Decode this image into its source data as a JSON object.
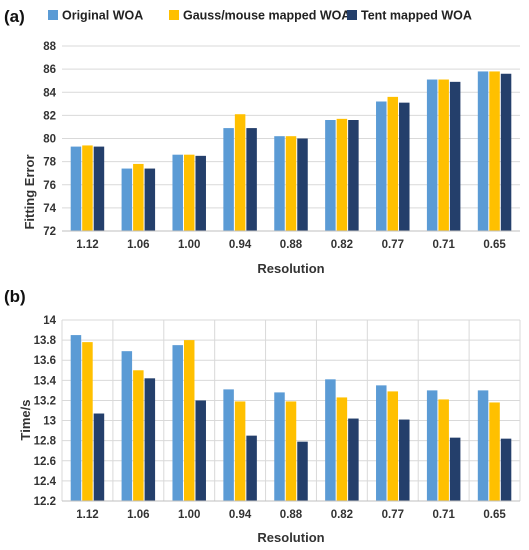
{
  "chart_data": [
    {
      "panel": "(a)",
      "type": "bar",
      "categories": [
        "1.12",
        "1.06",
        "1.00",
        "0.94",
        "0.88",
        "0.82",
        "0.77",
        "0.71",
        "0.65"
      ],
      "series": [
        {
          "name": "Original WOA",
          "color": "#5b9bd5",
          "values": [
            79.3,
            77.4,
            78.6,
            80.9,
            80.2,
            81.6,
            83.2,
            85.1,
            85.8
          ]
        },
        {
          "name": "Gauss/mouse mapped WOA",
          "color": "#ffc000",
          "values": [
            79.4,
            77.8,
            78.6,
            82.1,
            80.2,
            81.7,
            83.6,
            85.1,
            85.8
          ]
        },
        {
          "name": "Tent mapped WOA",
          "color": "#243f6b",
          "values": [
            79.3,
            77.4,
            78.5,
            80.9,
            80.0,
            81.6,
            83.1,
            84.9,
            85.6
          ]
        }
      ],
      "title": "",
      "xlabel": "Resolution",
      "ylabel": "Fitting Error",
      "ylim": [
        72,
        88
      ],
      "yticks": [
        "72",
        "74",
        "76",
        "78",
        "80",
        "82",
        "84",
        "86",
        "88"
      ],
      "grid": "horizontal",
      "legend": "top"
    },
    {
      "panel": "(b)",
      "type": "bar",
      "categories": [
        "1.12",
        "1.06",
        "1.00",
        "0.94",
        "0.88",
        "0.82",
        "0.77",
        "0.71",
        "0.65"
      ],
      "series": [
        {
          "name": "Original WOA",
          "color": "#5b9bd5",
          "values": [
            13.85,
            13.69,
            13.75,
            13.31,
            13.28,
            13.41,
            13.35,
            13.3,
            13.3
          ]
        },
        {
          "name": "Gauss/mouse mapped WOA",
          "color": "#ffc000",
          "values": [
            13.78,
            13.5,
            13.8,
            13.19,
            13.19,
            13.23,
            13.29,
            13.21,
            13.18
          ]
        },
        {
          "name": "Tent mapped WOA",
          "color": "#243f6b",
          "values": [
            13.07,
            13.42,
            13.2,
            12.85,
            12.79,
            13.02,
            13.01,
            12.83,
            12.82
          ]
        }
      ],
      "title": "",
      "xlabel": "Resolution",
      "ylabel": "Time/s",
      "ylim": [
        12.2,
        14
      ],
      "yticks": [
        "12.2",
        "12.4",
        "12.6",
        "12.8",
        "13",
        "13.2",
        "13.4",
        "13.6",
        "13.8",
        "14"
      ],
      "grid": "horizontal and vertical",
      "legend": "none"
    }
  ]
}
